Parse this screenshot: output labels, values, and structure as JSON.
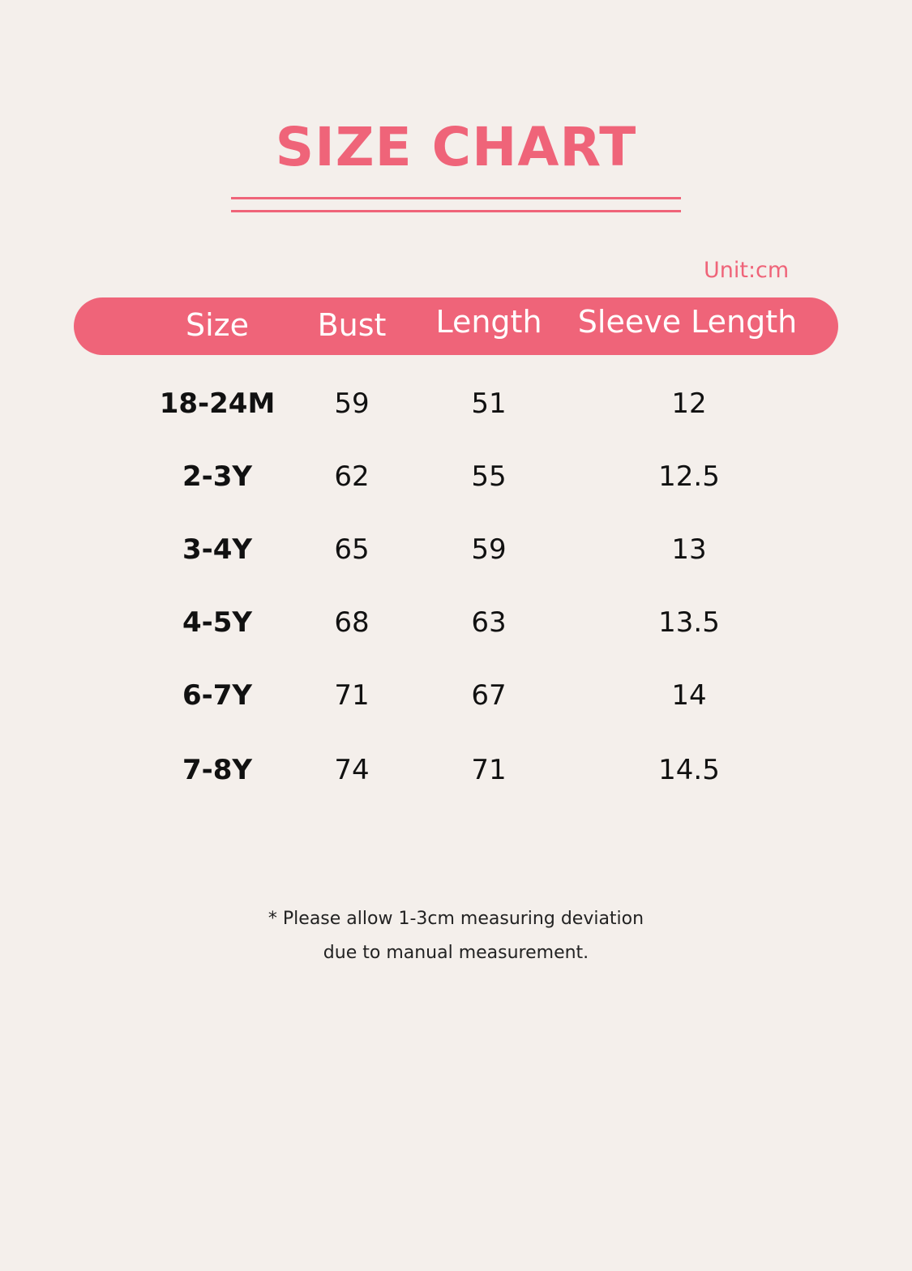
{
  "title": "SIZE CHART",
  "unit": "Unit:cm",
  "colors": {
    "accent": "#ef6479",
    "background": "#f4efeb",
    "text": "#111111"
  },
  "columns": [
    "Size",
    "Bust",
    "Length",
    "Sleeve Length"
  ],
  "rows": [
    [
      "18-24M",
      "59",
      "51",
      "12"
    ],
    [
      "2-3Y",
      "62",
      "55",
      "12.5"
    ],
    [
      "3-4Y",
      "65",
      "59",
      "13"
    ],
    [
      "4-5Y",
      "68",
      "63",
      "13.5"
    ],
    [
      "6-7Y",
      "71",
      "67",
      "14"
    ],
    [
      "7-8Y",
      "74",
      "71",
      "14.5"
    ]
  ],
  "note": {
    "line1": "* Please allow 1-3cm measuring deviation",
    "line2": "due to manual measurement."
  }
}
